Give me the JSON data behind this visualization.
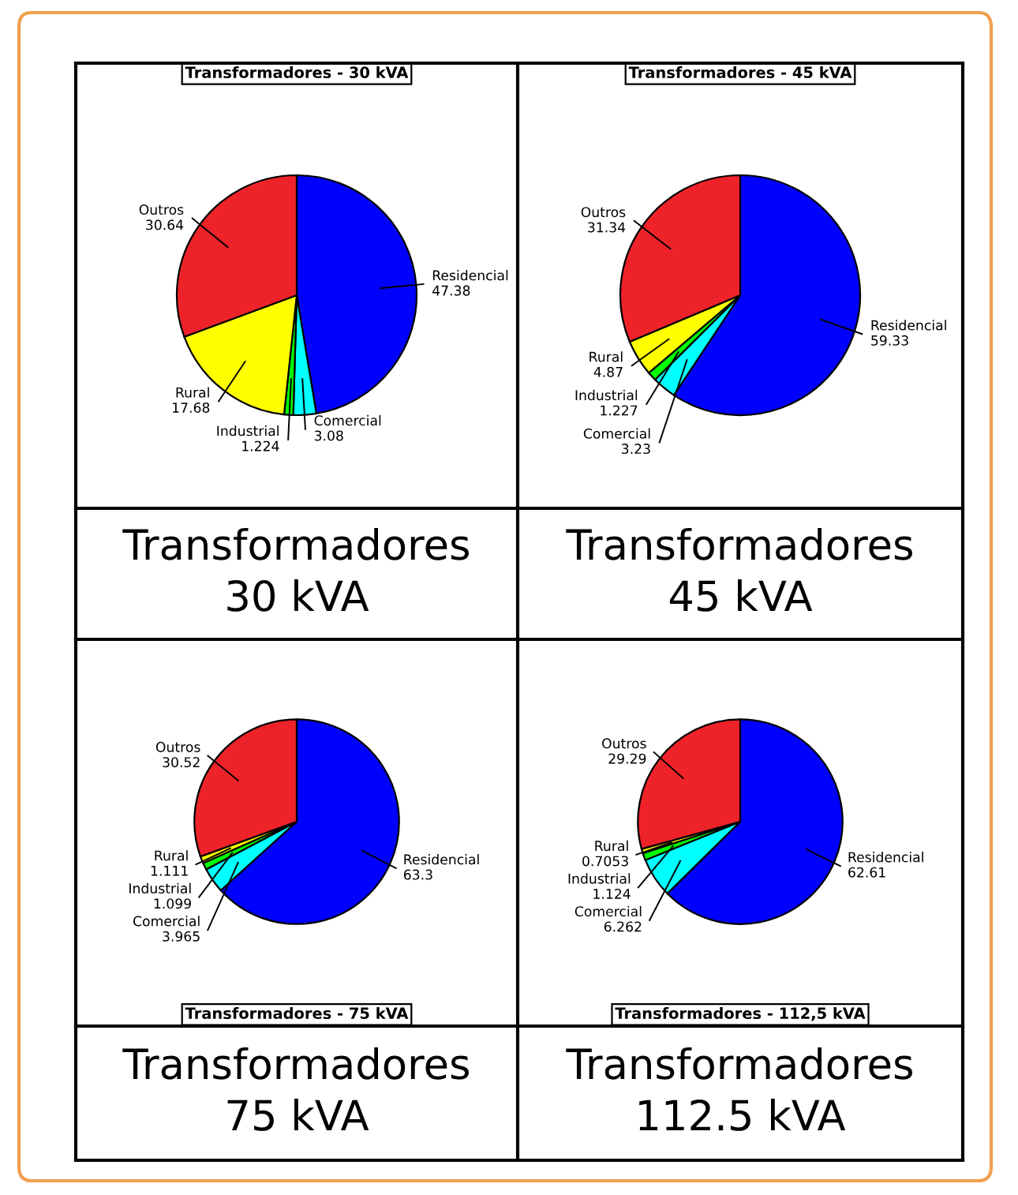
{
  "chart_data": [
    {
      "type": "pie",
      "title": "Transformadores - 30 kVA",
      "categories": [
        "Residencial",
        "Comercial",
        "Industrial",
        "Rural",
        "Outros"
      ],
      "values": [
        47.38,
        3.08,
        1.224,
        17.68,
        30.64
      ],
      "colors": [
        "#0000ff",
        "#00ffff",
        "#00ff00",
        "#ffff00",
        "#ee2229"
      ],
      "data_labels": true,
      "annotations": [
        "Transformadores\n30 kVA"
      ]
    },
    {
      "type": "pie",
      "title": "Transformadores - 45 kVA",
      "categories": [
        "Residencial",
        "Comercial",
        "Industrial",
        "Rural",
        "Outros"
      ],
      "values": [
        59.33,
        3.23,
        1.227,
        4.87,
        31.34
      ],
      "colors": [
        "#0000ff",
        "#00ffff",
        "#00ff00",
        "#ffff00",
        "#ee2229"
      ],
      "data_labels": true,
      "annotations": [
        "Transformadores\n45 kVA"
      ]
    },
    {
      "type": "pie",
      "title": "Transformadores - 75 kVA",
      "categories": [
        "Residencial",
        "Comercial",
        "Industrial",
        "Rural",
        "Outros"
      ],
      "values": [
        63.3,
        3.965,
        1.099,
        1.111,
        30.52
      ],
      "colors": [
        "#0000ff",
        "#00ffff",
        "#00ff00",
        "#ffff00",
        "#ee2229"
      ],
      "data_labels": true,
      "annotations": [
        "Transformadores\n75 kVA"
      ]
    },
    {
      "type": "pie",
      "title": "Transformadores - 112,5 kVA",
      "categories": [
        "Residencial",
        "Comercial",
        "Industrial",
        "Rural",
        "Outros"
      ],
      "values": [
        62.61,
        6.262,
        1.124,
        0.7053,
        29.29
      ],
      "colors": [
        "#0000ff",
        "#00ffff",
        "#00ff00",
        "#ffff00",
        "#ee2229"
      ],
      "data_labels": true,
      "annotations": [
        "Transformadores\n112.5 kVA"
      ]
    }
  ]
}
